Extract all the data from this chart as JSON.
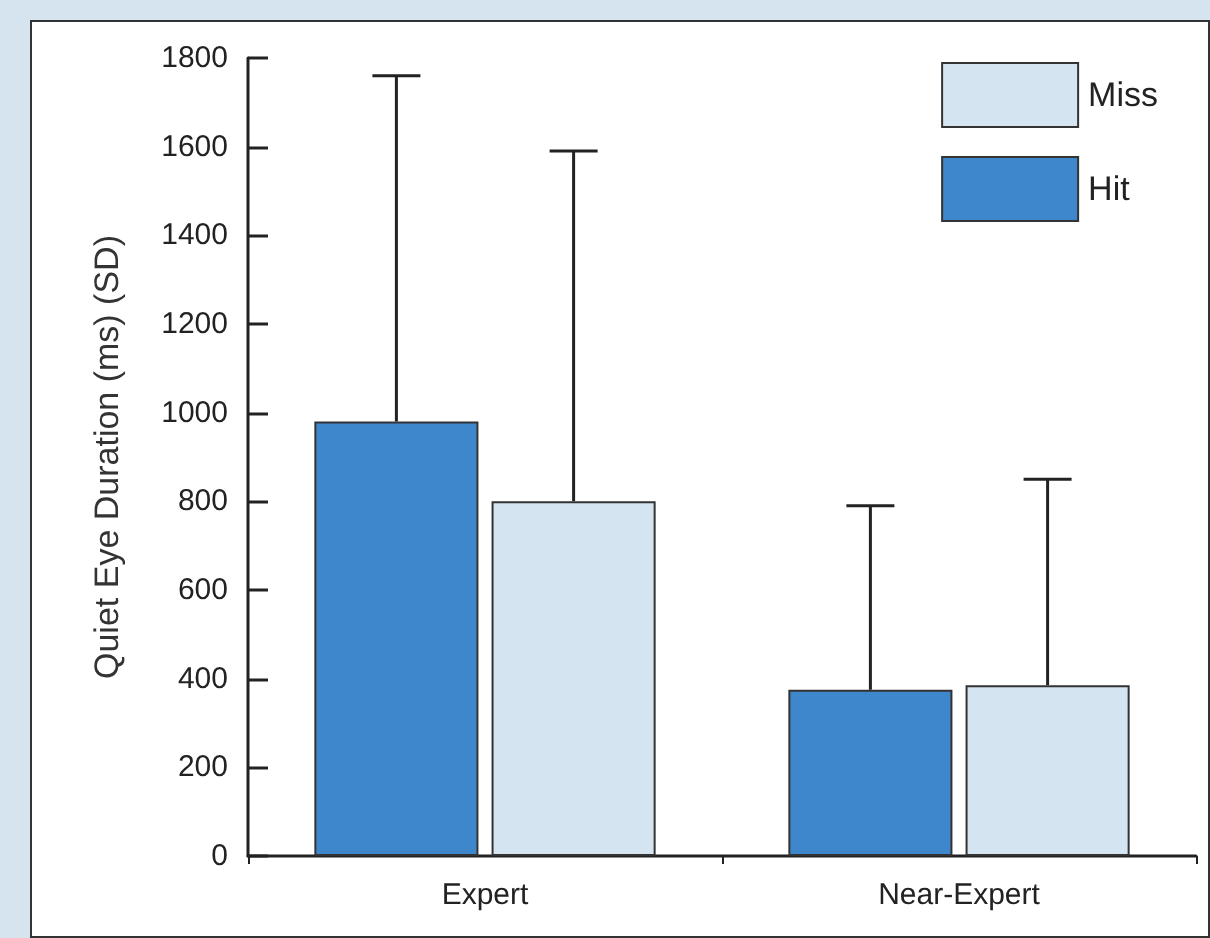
{
  "chart_data": {
    "type": "bar",
    "ylabel": "Quiet Eye Duration (ms) (SD)",
    "categories": [
      "Expert",
      "Near-Expert"
    ],
    "series": [
      {
        "name": "Hit",
        "color": "#3f87cc",
        "values": [
          980,
          375
        ],
        "errors": [
          [
            980,
            1760
          ],
          [
            375,
            790
          ]
        ]
      },
      {
        "name": "Miss",
        "color": "#d4e5f1",
        "values": [
          800,
          385
        ],
        "errors": [
          [
            800,
            1590
          ],
          [
            385,
            850
          ]
        ]
      }
    ],
    "ylim": [
      0,
      1800
    ],
    "yticks": [
      0,
      200,
      400,
      600,
      800,
      1000,
      1200,
      1400,
      1600,
      1800
    ],
    "grid": false,
    "legend": "top right"
  }
}
